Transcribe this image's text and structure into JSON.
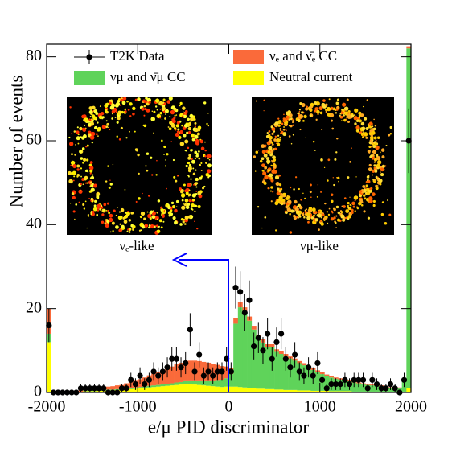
{
  "chart_data": {
    "type": "histogram",
    "xlabel": "e/μ PID discriminator",
    "ylabel": "Number of events",
    "xlim": [
      -2000,
      2000
    ],
    "ylim": [
      0,
      83
    ],
    "xticks": [
      -2000,
      -1000,
      0,
      1000,
      2000
    ],
    "yticks": [
      0,
      20,
      40,
      60,
      80
    ],
    "bins": [
      -2000,
      -1950,
      -1900,
      -1850,
      -1800,
      -1750,
      -1700,
      -1650,
      -1600,
      -1550,
      -1500,
      -1450,
      -1400,
      -1350,
      -1300,
      -1250,
      -1200,
      -1150,
      -1100,
      -1050,
      -1000,
      -950,
      -900,
      -850,
      -800,
      -750,
      -700,
      -650,
      -600,
      -550,
      -500,
      -450,
      -400,
      -350,
      -300,
      -250,
      -200,
      -150,
      -100,
      -50,
      0,
      50,
      100,
      150,
      200,
      250,
      300,
      350,
      400,
      450,
      500,
      550,
      600,
      650,
      700,
      750,
      800,
      850,
      900,
      950,
      1000,
      1050,
      1100,
      1150,
      1200,
      1250,
      1300,
      1350,
      1400,
      1450,
      1500,
      1550,
      1600,
      1650,
      1700,
      1750,
      1800,
      1850,
      1900,
      1950,
      2000
    ],
    "series": [
      {
        "name": "T2K Data",
        "color": "#000000",
        "values": [
          16,
          0,
          0,
          0,
          0,
          0,
          0,
          1,
          1,
          1,
          1,
          1,
          1,
          0,
          0,
          0,
          1,
          1,
          3,
          2,
          4,
          2,
          3,
          5,
          4,
          5,
          6,
          8,
          8,
          6,
          7,
          15,
          5,
          9,
          4,
          5,
          4,
          5,
          5,
          8,
          5,
          25,
          24,
          19,
          22,
          11,
          13,
          10,
          14,
          8,
          12,
          14,
          8,
          6,
          9,
          5,
          4,
          6,
          4,
          7,
          3,
          1,
          2,
          2,
          2,
          3,
          2,
          3,
          3,
          3,
          1,
          3,
          2,
          1,
          1,
          2,
          1,
          0,
          3,
          60
        ],
        "errors": [
          4,
          0,
          0,
          0,
          0,
          0,
          0,
          1,
          1,
          1,
          1,
          1,
          1,
          0,
          0,
          0,
          1,
          1,
          1.7,
          1.4,
          2,
          1.4,
          1.7,
          2.2,
          2,
          2.2,
          2.4,
          2.8,
          2.8,
          2.4,
          2.6,
          3.9,
          2.2,
          3,
          2,
          2.2,
          2,
          2.2,
          2.2,
          2.8,
          2.2,
          5,
          4.9,
          4.4,
          4.7,
          3.3,
          3.6,
          3.2,
          3.7,
          2.8,
          3.5,
          3.7,
          2.8,
          2.4,
          3,
          2.2,
          2,
          2.4,
          2,
          2.6,
          1.7,
          1,
          1.4,
          1.4,
          1.4,
          1.7,
          1.4,
          1.7,
          1.7,
          1.7,
          1,
          1.7,
          1.4,
          1,
          1,
          1.4,
          1,
          0,
          1.7,
          7.7
        ]
      },
      {
        "name": "νₑ and ν̄ₑ CC",
        "color": "#fa6a3a",
        "values": [
          6,
          0.2,
          0.2,
          0.2,
          0.3,
          0.3,
          0.3,
          0.4,
          0.4,
          0.5,
          0.5,
          0.6,
          0.6,
          0.7,
          0.8,
          0.9,
          1.0,
          1.2,
          1.4,
          1.6,
          1.9,
          2.2,
          2.5,
          2.8,
          3.1,
          3.4,
          3.7,
          4.0,
          4.3,
          4.6,
          4.8,
          4.9,
          4.9,
          4.8,
          4.6,
          4.4,
          4.1,
          3.8,
          3.4,
          2.8,
          1.5,
          1.3,
          1.2,
          1.1,
          1.0,
          0.9,
          0.8,
          0.8,
          0.7,
          0.7,
          0.6,
          0.6,
          0.6,
          0.5,
          0.5,
          0.5,
          0.5,
          0.4,
          0.4,
          0.4,
          0.4,
          0.3,
          0.3,
          0.3,
          0.3,
          0.3,
          0.3,
          0.2,
          0.2,
          0.2,
          0.2,
          0.2,
          0.2,
          0.2,
          0.2,
          0.1,
          0.1,
          0.1,
          0.2,
          0.5
        ]
      },
      {
        "name": "νμ and ν̄μ CC",
        "color": "#5fd35a",
        "values": [
          2,
          0.1,
          0.1,
          0.1,
          0.1,
          0.1,
          0.1,
          0.1,
          0.2,
          0.2,
          0.2,
          0.2,
          0.2,
          0.2,
          0.2,
          0.2,
          0.2,
          0.3,
          0.3,
          0.3,
          0.3,
          0.3,
          0.4,
          0.4,
          0.4,
          0.5,
          0.5,
          0.5,
          0.6,
          0.6,
          0.7,
          0.7,
          0.8,
          0.9,
          1.0,
          1.1,
          1.2,
          1.4,
          1.6,
          2.0,
          3,
          15,
          19,
          18,
          16,
          14,
          12,
          11,
          10,
          10,
          9,
          8.5,
          8,
          7.5,
          7,
          6.5,
          6,
          5.5,
          5,
          4.5,
          4,
          3.6,
          3.3,
          3,
          2.8,
          2.6,
          2.4,
          2.2,
          2,
          1.8,
          1.6,
          1.5,
          1.4,
          1.3,
          1.2,
          1.1,
          1.0,
          1.0,
          3,
          81
        ]
      },
      {
        "name": "Neutral current",
        "color": "#ffff00",
        "values": [
          12,
          0,
          0,
          0,
          0,
          0,
          0,
          0,
          0.3,
          0.3,
          0.3,
          0.4,
          0.4,
          0.5,
          0.5,
          0.6,
          0.6,
          0.7,
          0.8,
          0.9,
          1.0,
          1.1,
          1.2,
          1.3,
          1.4,
          1.5,
          1.6,
          1.7,
          1.8,
          1.9,
          2.0,
          2.0,
          1.9,
          1.8,
          1.7,
          1.6,
          1.5,
          1.4,
          1.3,
          1.4,
          1.4,
          1.4,
          1.3,
          1.2,
          1.1,
          1.0,
          0.9,
          0.9,
          0.8,
          0.8,
          0.7,
          0.7,
          0.6,
          0.6,
          0.6,
          0.5,
          0.5,
          0.5,
          0.4,
          0.4,
          0.4,
          0.4,
          0.3,
          0.3,
          0.3,
          0.3,
          0.3,
          0.2,
          0.2,
          0.2,
          0.2,
          0.2,
          0.2,
          0.2,
          0.2,
          0.1,
          0.1,
          0.1,
          0.2,
          1
        ]
      }
    ],
    "annotations": [
      "νₑ-like",
      "νμ-like"
    ]
  }
}
